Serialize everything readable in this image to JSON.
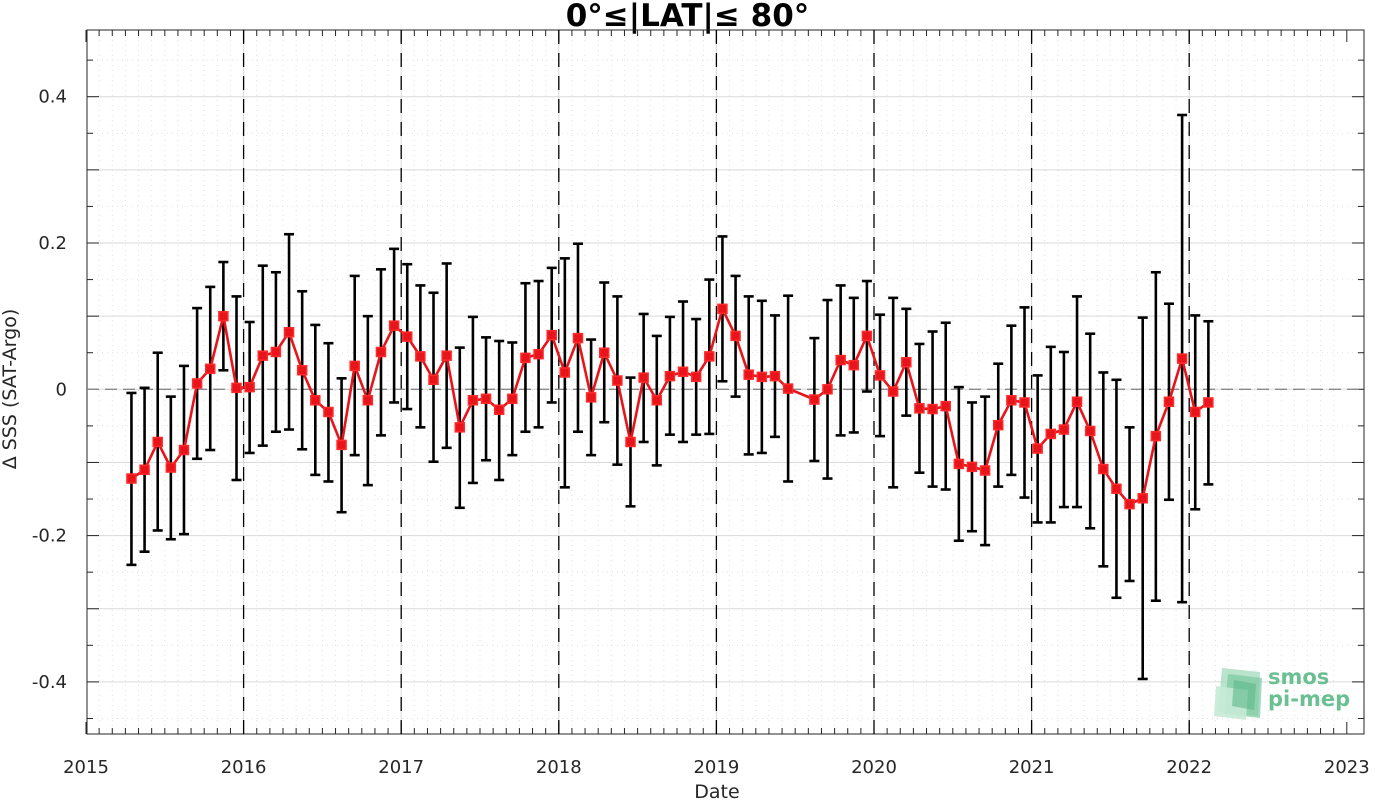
{
  "chart_data": {
    "type": "line",
    "title": "0°≤|LAT|≤ 80°",
    "xlabel": "Date",
    "ylabel": "Δ SSS (SAT-Argo)",
    "xlim": [
      2015,
      2023
    ],
    "ylim": [
      -0.47,
      0.47
    ],
    "xticks": [
      "2015",
      "2016",
      "2017",
      "2018",
      "2019",
      "2020",
      "2021",
      "2022",
      "2023"
    ],
    "yticks": [
      {
        "value": 0.4,
        "label": "0.4"
      },
      {
        "value": 0.2,
        "label": "0.2"
      },
      {
        "value": 0,
        "label": "0"
      },
      {
        "value": -0.2,
        "label": "-0.2"
      },
      {
        "value": -0.4,
        "label": "-0.4"
      }
    ],
    "grid": true,
    "year_markers": [
      2016,
      2017,
      2018,
      2019,
      2020,
      2021,
      2022
    ],
    "series": [
      {
        "style": "red line with square markers and black error bars",
        "points": [
          {
            "date": "2015-04-15",
            "y": -0.122,
            "lo": -0.24,
            "hi": -0.005
          },
          {
            "date": "2015-05-15",
            "y": -0.11,
            "lo": -0.222,
            "hi": 0.002
          },
          {
            "date": "2015-06-15",
            "y": -0.072,
            "lo": -0.193,
            "hi": 0.05
          },
          {
            "date": "2015-07-15",
            "y": -0.107,
            "lo": -0.205,
            "hi": -0.01
          },
          {
            "date": "2015-08-15",
            "y": -0.083,
            "lo": -0.198,
            "hi": 0.032
          },
          {
            "date": "2015-09-15",
            "y": 0.008,
            "lo": -0.095,
            "hi": 0.111
          },
          {
            "date": "2015-10-15",
            "y": 0.028,
            "lo": -0.083,
            "hi": 0.14
          },
          {
            "date": "2015-11-15",
            "y": 0.1,
            "lo": 0.026,
            "hi": 0.174
          },
          {
            "date": "2015-12-15",
            "y": 0.002,
            "lo": -0.124,
            "hi": 0.127
          },
          {
            "date": "2016-01-15",
            "y": 0.003,
            "lo": -0.087,
            "hi": 0.092
          },
          {
            "date": "2016-02-15",
            "y": 0.046,
            "lo": -0.077,
            "hi": 0.169
          },
          {
            "date": "2016-03-15",
            "y": 0.051,
            "lo": -0.058,
            "hi": 0.16
          },
          {
            "date": "2016-04-15",
            "y": 0.078,
            "lo": -0.055,
            "hi": 0.212
          },
          {
            "date": "2016-05-15",
            "y": 0.026,
            "lo": -0.082,
            "hi": 0.134
          },
          {
            "date": "2016-06-15",
            "y": -0.015,
            "lo": -0.117,
            "hi": 0.088
          },
          {
            "date": "2016-07-15",
            "y": -0.031,
            "lo": -0.126,
            "hi": 0.063
          },
          {
            "date": "2016-08-15",
            "y": -0.076,
            "lo": -0.168,
            "hi": 0.015
          },
          {
            "date": "2016-09-15",
            "y": 0.032,
            "lo": -0.09,
            "hi": 0.155
          },
          {
            "date": "2016-10-15",
            "y": -0.015,
            "lo": -0.131,
            "hi": 0.1
          },
          {
            "date": "2016-11-15",
            "y": 0.051,
            "lo": -0.063,
            "hi": 0.164
          },
          {
            "date": "2016-12-15",
            "y": 0.087,
            "lo": -0.018,
            "hi": 0.192
          },
          {
            "date": "2017-01-15",
            "y": 0.072,
            "lo": -0.027,
            "hi": 0.171
          },
          {
            "date": "2017-02-15",
            "y": 0.045,
            "lo": -0.052,
            "hi": 0.142
          },
          {
            "date": "2017-03-15",
            "y": 0.013,
            "lo": -0.099,
            "hi": 0.132
          },
          {
            "date": "2017-04-15",
            "y": 0.046,
            "lo": -0.08,
            "hi": 0.172
          },
          {
            "date": "2017-05-15",
            "y": -0.052,
            "lo": -0.162,
            "hi": 0.057
          },
          {
            "date": "2017-06-15",
            "y": -0.015,
            "lo": -0.128,
            "hi": 0.099
          },
          {
            "date": "2017-07-15",
            "y": -0.013,
            "lo": -0.097,
            "hi": 0.071
          },
          {
            "date": "2017-08-15",
            "y": -0.028,
            "lo": -0.124,
            "hi": 0.066
          },
          {
            "date": "2017-09-15",
            "y": -0.013,
            "lo": -0.09,
            "hi": 0.064
          },
          {
            "date": "2017-10-15",
            "y": 0.043,
            "lo": -0.058,
            "hi": 0.145
          },
          {
            "date": "2017-11-15",
            "y": 0.048,
            "lo": -0.052,
            "hi": 0.148
          },
          {
            "date": "2017-12-15",
            "y": 0.074,
            "lo": -0.018,
            "hi": 0.166
          },
          {
            "date": "2018-01-15",
            "y": 0.023,
            "lo": -0.134,
            "hi": 0.179
          },
          {
            "date": "2018-02-15",
            "y": 0.07,
            "lo": -0.058,
            "hi": 0.199
          },
          {
            "date": "2018-03-15",
            "y": -0.011,
            "lo": -0.09,
            "hi": 0.068
          },
          {
            "date": "2018-04-15",
            "y": 0.05,
            "lo": -0.045,
            "hi": 0.146
          },
          {
            "date": "2018-05-15",
            "y": 0.012,
            "lo": -0.103,
            "hi": 0.127
          },
          {
            "date": "2018-06-15",
            "y": -0.072,
            "lo": -0.16,
            "hi": 0.016
          },
          {
            "date": "2018-07-15",
            "y": 0.016,
            "lo": -0.072,
            "hi": 0.103
          },
          {
            "date": "2018-08-15",
            "y": -0.015,
            "lo": -0.104,
            "hi": 0.073
          },
          {
            "date": "2018-09-15",
            "y": 0.018,
            "lo": -0.062,
            "hi": 0.099
          },
          {
            "date": "2018-10-15",
            "y": 0.024,
            "lo": -0.072,
            "hi": 0.12
          },
          {
            "date": "2018-11-15",
            "y": 0.017,
            "lo": -0.062,
            "hi": 0.096
          },
          {
            "date": "2018-12-15",
            "y": 0.045,
            "lo": -0.061,
            "hi": 0.15
          },
          {
            "date": "2019-01-15",
            "y": 0.11,
            "lo": 0.011,
            "hi": 0.209
          },
          {
            "date": "2019-02-15",
            "y": 0.073,
            "lo": -0.01,
            "hi": 0.155
          },
          {
            "date": "2019-03-15",
            "y": 0.02,
            "lo": -0.089,
            "hi": 0.127
          },
          {
            "date": "2019-04-15",
            "y": 0.017,
            "lo": -0.087,
            "hi": 0.121
          },
          {
            "date": "2019-05-15",
            "y": 0.018,
            "lo": -0.065,
            "hi": 0.101
          },
          {
            "date": "2019-06-15",
            "y": 0.001,
            "lo": -0.126,
            "hi": 0.128
          },
          {
            "date": "2019-08-15",
            "y": -0.014,
            "lo": -0.098,
            "hi": 0.07
          },
          {
            "date": "2019-09-15",
            "y": 0.0,
            "lo": -0.122,
            "hi": 0.122
          },
          {
            "date": "2019-10-15",
            "y": 0.04,
            "lo": -0.063,
            "hi": 0.142
          },
          {
            "date": "2019-11-15",
            "y": 0.033,
            "lo": -0.059,
            "hi": 0.125
          },
          {
            "date": "2019-12-15",
            "y": 0.073,
            "lo": -0.003,
            "hi": 0.148
          },
          {
            "date": "2020-01-15",
            "y": 0.019,
            "lo": -0.064,
            "hi": 0.102
          },
          {
            "date": "2020-02-15",
            "y": -0.003,
            "lo": -0.134,
            "hi": 0.125
          },
          {
            "date": "2020-03-15",
            "y": 0.037,
            "lo": -0.036,
            "hi": 0.11
          },
          {
            "date": "2020-04-15",
            "y": -0.026,
            "lo": -0.114,
            "hi": 0.062
          },
          {
            "date": "2020-05-15",
            "y": -0.027,
            "lo": -0.133,
            "hi": 0.079
          },
          {
            "date": "2020-06-15",
            "y": -0.023,
            "lo": -0.137,
            "hi": 0.091
          },
          {
            "date": "2020-07-15",
            "y": -0.102,
            "lo": -0.207,
            "hi": 0.003
          },
          {
            "date": "2020-08-15",
            "y": -0.106,
            "lo": -0.194,
            "hi": -0.018
          },
          {
            "date": "2020-09-15",
            "y": -0.111,
            "lo": -0.213,
            "hi": -0.01
          },
          {
            "date": "2020-10-15",
            "y": -0.049,
            "lo": -0.133,
            "hi": 0.035
          },
          {
            "date": "2020-11-15",
            "y": -0.015,
            "lo": -0.117,
            "hi": 0.087
          },
          {
            "date": "2020-12-15",
            "y": -0.018,
            "lo": -0.148,
            "hi": 0.112
          },
          {
            "date": "2021-01-15",
            "y": -0.081,
            "lo": -0.182,
            "hi": 0.019
          },
          {
            "date": "2021-02-15",
            "y": -0.061,
            "lo": -0.182,
            "hi": 0.058
          },
          {
            "date": "2021-03-15",
            "y": -0.055,
            "lo": -0.161,
            "hi": 0.051
          },
          {
            "date": "2021-04-15",
            "y": -0.017,
            "lo": -0.161,
            "hi": 0.127
          },
          {
            "date": "2021-05-15",
            "y": -0.057,
            "lo": -0.19,
            "hi": 0.076
          },
          {
            "date": "2021-06-15",
            "y": -0.109,
            "lo": -0.242,
            "hi": 0.023
          },
          {
            "date": "2021-07-15",
            "y": -0.136,
            "lo": -0.285,
            "hi": 0.013
          },
          {
            "date": "2021-08-15",
            "y": -0.157,
            "lo": -0.262,
            "hi": -0.052
          },
          {
            "date": "2021-09-15",
            "y": -0.149,
            "lo": -0.396,
            "hi": 0.098
          },
          {
            "date": "2021-10-15",
            "y": -0.064,
            "lo": -0.289,
            "hi": 0.16
          },
          {
            "date": "2021-11-15",
            "y": -0.017,
            "lo": -0.151,
            "hi": 0.117
          },
          {
            "date": "2021-12-15",
            "y": 0.042,
            "lo": -0.291,
            "hi": 0.375
          },
          {
            "date": "2022-01-15",
            "y": -0.031,
            "lo": -0.164,
            "hi": 0.101
          },
          {
            "date": "2022-02-15",
            "y": -0.018,
            "lo": -0.13,
            "hi": 0.093
          }
        ]
      }
    ]
  },
  "logo": {
    "line1": "smos",
    "line2": "pi-mep"
  },
  "colors": {
    "line": "#e8141b",
    "marker_edge": "#ff2a2a",
    "errorbar": "#000000",
    "axes": "#262626",
    "grid": "#d9d9d9",
    "logo": "#6abf93"
  }
}
